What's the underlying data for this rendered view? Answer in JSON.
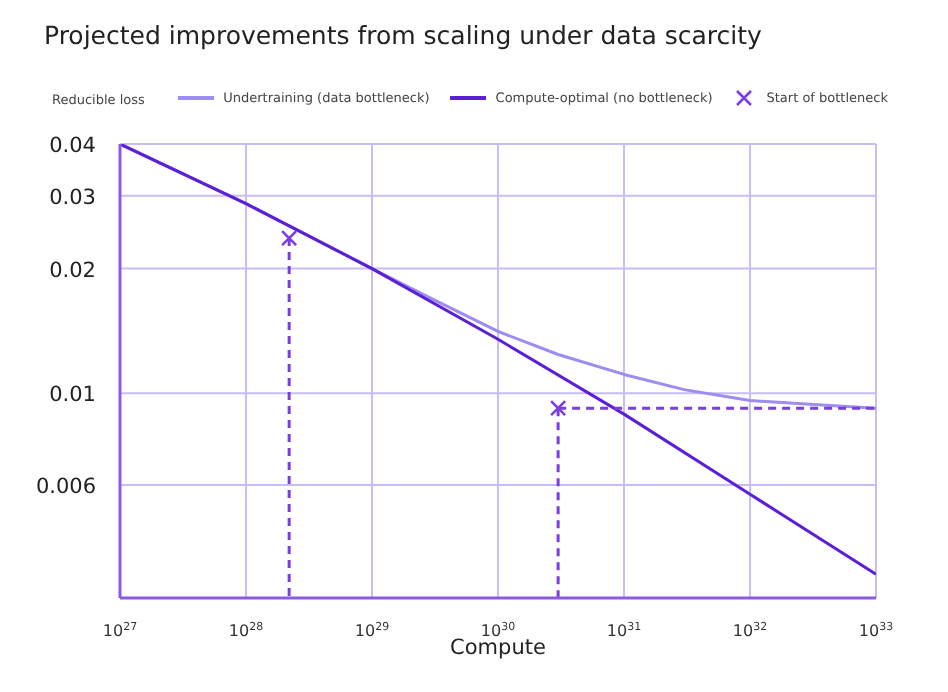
{
  "chart_data": {
    "type": "line",
    "title": "Projected improvements from scaling under data scarcity",
    "xlabel": "Compute",
    "ylabel": "Reducible loss",
    "log": "xy",
    "grid": true,
    "legend": "top",
    "xlim": [
      1e+27,
      1e+33
    ],
    "ylim": [
      0.0032,
      0.04
    ],
    "xticks": [
      {
        "value": 1e+27,
        "label": "10$^{27}$"
      },
      {
        "value": 1e+28,
        "label": "10$^{28}$"
      },
      {
        "value": 1e+29,
        "label": "10$^{29}$"
      },
      {
        "value": 1e+30,
        "label": "10$^{30}$"
      },
      {
        "value": 1e+31,
        "label": "10$^{31}$"
      },
      {
        "value": 1e+32,
        "label": "10$^{32}$"
      },
      {
        "value": 1e+33,
        "label": "10$^{33}$"
      }
    ],
    "yticks": [
      0.006,
      0.01,
      0.02,
      0.03,
      0.04
    ],
    "series": [
      {
        "name": "Undertraining (data bottleneck)",
        "color": "#9d8cf2",
        "marker": "none",
        "line_style": "solid",
        "x": [
          1e+27,
          1e+28,
          1e+29,
          3e+29,
          1e+30,
          3e+30,
          1e+31,
          3e+31,
          1e+32,
          3e+32,
          1e+33
        ],
        "values": [
          0.04,
          0.0287,
          0.02,
          0.0169,
          0.0141,
          0.0124,
          0.0111,
          0.0102,
          0.0096,
          0.0094,
          0.0092
        ]
      },
      {
        "name": "Compute-optimal (no bottleneck)",
        "color": "#5b1fd6",
        "marker": "none",
        "line_style": "solid",
        "x": [
          1e+27,
          1e+28,
          1e+29,
          1e+30,
          1e+31,
          1e+32,
          1e+33
        ],
        "values": [
          0.04,
          0.0287,
          0.02,
          0.0135,
          0.0089,
          0.0057,
          0.00365
        ]
      },
      {
        "name": "Start of bottleneck",
        "type": "scatter",
        "color": "#7a3ee0",
        "marker": "cross",
        "x": [
          2.2e+28,
          3e+30
        ],
        "values": [
          0.0237,
          0.0092
        ]
      },
      {
        "type": "line",
        "color": "#7a3ee0",
        "marker": "none",
        "line_style": "dashed",
        "x": [
          2.2e+28,
          2.2e+28
        ],
        "values": [
          0.0237,
          0.0032
        ]
      },
      {
        "type": "line",
        "color": "#7a3ee0",
        "marker": "none",
        "line_style": "dashed",
        "x": [
          3e+30,
          3e+30
        ],
        "values": [
          0.0092,
          0.0032
        ]
      },
      {
        "type": "line",
        "color": "#7a3ee0",
        "marker": "none",
        "line_style": "dashed",
        "x": [
          3e+30,
          1e+33
        ],
        "values": [
          0.0092,
          0.0092
        ]
      }
    ]
  }
}
